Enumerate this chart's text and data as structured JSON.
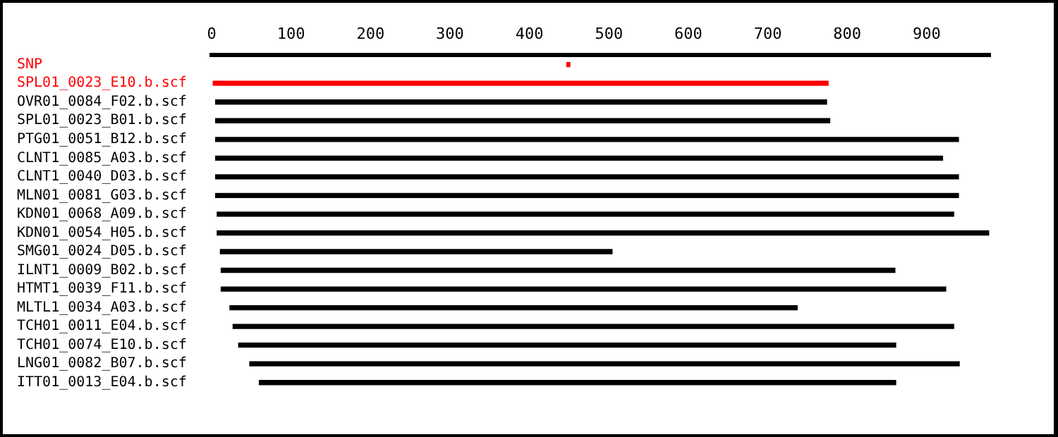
{
  "chart_data": {
    "type": "bar",
    "orientation": "horizontal",
    "categories": [
      "SNP",
      "SPL01_0023_E10.b.scf",
      "OVR01_0084_F02.b.scf",
      "SPL01_0023_B01.b.scf",
      "PTG01_0051_B12.b.scf",
      "CLNT1_0085_A03.b.scf",
      "CLNT1_0040_D03.b.scf",
      "MLN01_0081_G03.b.scf",
      "KDN01_0068_A09.b.scf",
      "KDN01_0054_H05.b.scf",
      "SMG01_0024_D05.b.scf",
      "ILNT1_0009_B02.b.scf",
      "HTMT1_0039_F11.b.scf",
      "MLTL1_0034_A03.b.scf",
      "TCH01_0011_E04.b.scf",
      "TCH01_0074_E10.b.scf",
      "LNG01_0082_B07.b.scf",
      "ITT01_0013_E04.b.scf"
    ],
    "base": [
      447,
      2,
      5,
      5,
      5,
      5,
      5,
      5,
      7,
      7,
      11,
      12,
      12,
      23,
      27,
      34,
      48,
      60
    ],
    "values": [
      4,
      774,
      769,
      773,
      935,
      915,
      935,
      935,
      927,
      971,
      493,
      848,
      912,
      714,
      907,
      827,
      893,
      801
    ],
    "colors": [
      "#ff0000",
      "#ff0000",
      "#000000",
      "#000000",
      "#000000",
      "#000000",
      "#000000",
      "#000000",
      "#000000",
      "#000000",
      "#000000",
      "#000000",
      "#000000",
      "#000000",
      "#000000",
      "#000000",
      "#000000",
      "#000000"
    ],
    "xlim": [
      0,
      980
    ],
    "xticks": [
      0,
      100,
      200,
      300,
      400,
      500,
      600,
      700,
      800,
      900
    ],
    "grid": false,
    "legend": false
  }
}
